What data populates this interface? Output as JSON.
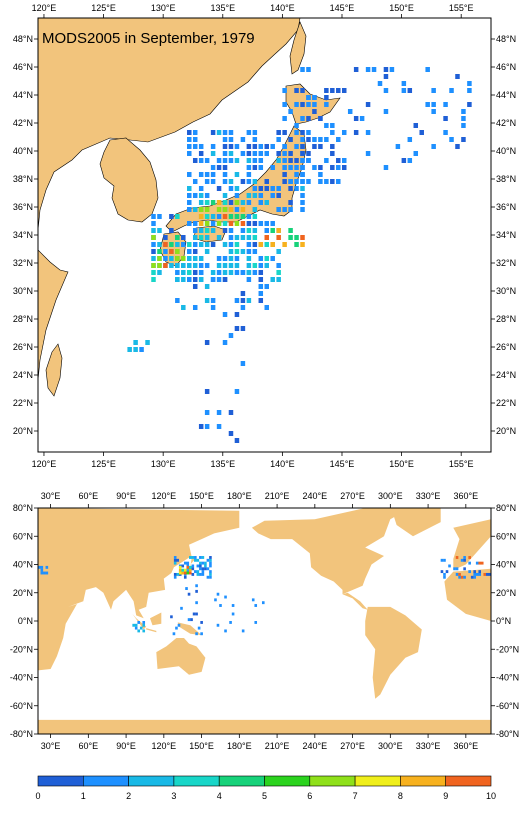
{
  "title": "MODS2005 in September, 1979",
  "top_map": {
    "lon_ticks": [
      "120°E",
      "125°E",
      "130°E",
      "135°E",
      "140°E",
      "145°E",
      "150°E",
      "155°E"
    ],
    "lat_ticks": [
      "20°N",
      "22°N",
      "24°N",
      "26°N",
      "28°N",
      "30°N",
      "32°N",
      "34°N",
      "36°N",
      "38°N",
      "40°N",
      "42°N",
      "44°N",
      "46°N",
      "48°N"
    ],
    "lon_range": [
      119.5,
      157.5
    ],
    "lat_range": [
      18.5,
      49.5
    ]
  },
  "bottom_map": {
    "lon_ticks": [
      "30°E",
      "60°E",
      "90°E",
      "120°E",
      "150°E",
      "180°E",
      "210°E",
      "240°E",
      "270°E",
      "300°E",
      "330°E",
      "360°E"
    ],
    "lat_ticks": [
      "80°N",
      "60°N",
      "40°N",
      "20°N",
      "0°N",
      "-20°N",
      "-40°N",
      "-60°N",
      "-80°N"
    ],
    "lon_range": [
      20,
      380
    ],
    "lat_range": [
      -80,
      80
    ]
  },
  "colorbar": {
    "labels": [
      "0",
      "1",
      "2",
      "3",
      "4",
      "5",
      "6",
      "7",
      "8",
      "9",
      "10"
    ],
    "colors": [
      "#1f5fd6",
      "#1e90ff",
      "#19b9e6",
      "#18d6c8",
      "#17d27a",
      "#2bd31e",
      "#8fe01a",
      "#f0ef1b",
      "#f7b11e",
      "#f0641f"
    ]
  },
  "land_color": "#f2c47c"
}
